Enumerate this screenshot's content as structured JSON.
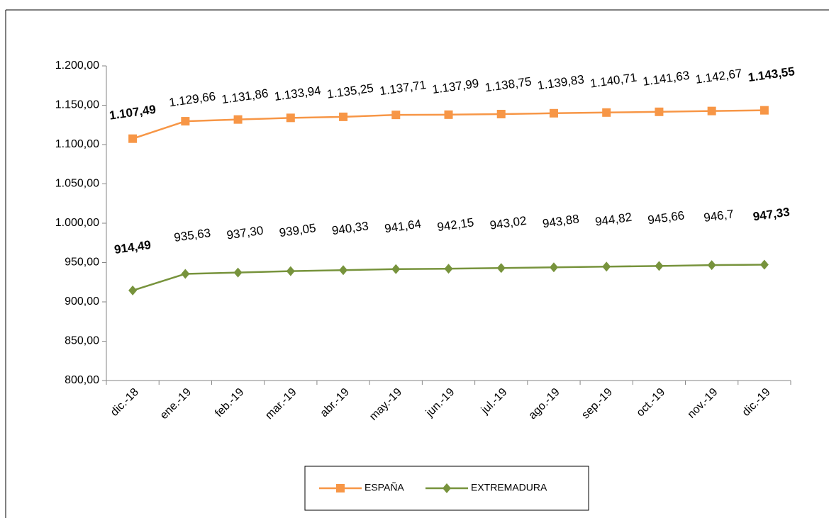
{
  "chart_data": {
    "type": "line",
    "categories": [
      "dic.-18",
      "ene.-19",
      "feb.-19",
      "mar.-19",
      "abr.-19",
      "may.-19",
      "jun.-19",
      "jul.-19",
      "ago.-19",
      "sep.-19",
      "oct.-19",
      "nov.-19",
      "dic.-19"
    ],
    "series": [
      {
        "name": "ESPAÑA",
        "color": "#f79646",
        "marker": "square",
        "values": [
          1107.49,
          1129.66,
          1131.86,
          1133.94,
          1135.25,
          1137.71,
          1137.99,
          1138.75,
          1139.83,
          1140.71,
          1141.63,
          1142.67,
          1143.55
        ],
        "value_labels": [
          "1.107,49",
          "1.129,66",
          "1.131,86",
          "1.133,94",
          "1.135,25",
          "1.137,71",
          "1.137,99",
          "1.138,75",
          "1.139,83",
          "1.140,71",
          "1.141,63",
          "1.142,67",
          "1.143,55"
        ]
      },
      {
        "name": "EXTREMADURA",
        "color": "#77933c",
        "marker": "diamond",
        "values": [
          914.49,
          935.63,
          937.3,
          939.05,
          940.33,
          941.64,
          942.15,
          943.02,
          943.88,
          944.82,
          945.66,
          946.7,
          947.33
        ],
        "value_labels": [
          "914,49",
          "935,63",
          "937,30",
          "939,05",
          "940,33",
          "941,64",
          "942,15",
          "943,02",
          "943,88",
          "944,82",
          "945,66",
          "946,7",
          "947,33"
        ]
      }
    ],
    "ylim": [
      800,
      1200
    ],
    "yticks": [
      {
        "value": 800,
        "label": "800,00"
      },
      {
        "value": 850,
        "label": "850,00"
      },
      {
        "value": 900,
        "label": "900,00"
      },
      {
        "value": 950,
        "label": "950,00"
      },
      {
        "value": 1000,
        "label": "1.000,00"
      },
      {
        "value": 1050,
        "label": "1.050,00"
      },
      {
        "value": 1100,
        "label": "1.100,00"
      },
      {
        "value": 1150,
        "label": "1.150,00"
      },
      {
        "value": 1200,
        "label": "1.200,00"
      }
    ],
    "grid": false,
    "legend": "bottom"
  }
}
